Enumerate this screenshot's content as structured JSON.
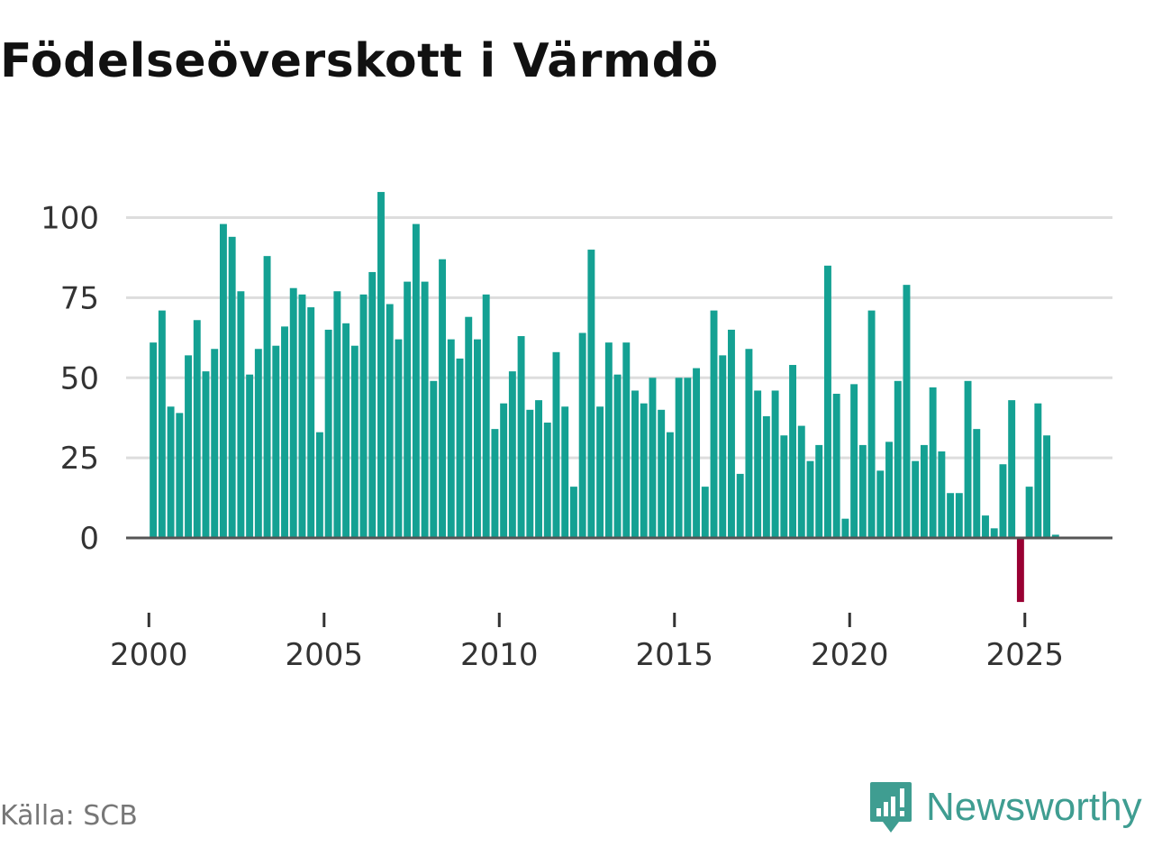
{
  "title": "Födelseöverskott i Värmdö",
  "source": "Källa: SCB",
  "brand": {
    "name": "Newsworthy",
    "icon": "bar-chart-speech-icon"
  },
  "colors": {
    "positive": "#14a193",
    "negative": "#990033",
    "brand": "#3f9d91"
  },
  "chart_data": {
    "type": "bar",
    "title": "Födelseöverskott i Värmdö",
    "xlabel": "",
    "ylabel": "",
    "frequency": "quarterly",
    "start_year": 2000,
    "start_quarter": 1,
    "ylim": [
      -20,
      110
    ],
    "xlim": [
      1999.35,
      2027.5
    ],
    "y_ticks": [
      0,
      25,
      50,
      75,
      100
    ],
    "x_ticks": [
      2000,
      2005,
      2010,
      2015,
      2020,
      2025
    ],
    "grid": true,
    "legend": "none",
    "values": [
      61,
      71,
      41,
      39,
      57,
      68,
      52,
      59,
      98,
      94,
      77,
      51,
      59,
      88,
      60,
      66,
      78,
      76,
      72,
      33,
      65,
      77,
      67,
      60,
      76,
      83,
      108,
      73,
      62,
      80,
      98,
      80,
      49,
      87,
      62,
      56,
      69,
      62,
      76,
      34,
      42,
      52,
      63,
      40,
      43,
      36,
      58,
      41,
      16,
      64,
      90,
      41,
      61,
      51,
      61,
      46,
      42,
      50,
      40,
      33,
      50,
      50,
      53,
      16,
      71,
      57,
      65,
      20,
      59,
      46,
      38,
      46,
      32,
      54,
      35,
      24,
      29,
      85,
      45,
      6,
      48,
      29,
      71,
      21,
      30,
      49,
      79,
      24,
      29,
      47,
      27,
      14,
      14,
      49,
      34,
      7,
      3,
      23,
      43,
      -20,
      16,
      42,
      32,
      1
    ]
  }
}
